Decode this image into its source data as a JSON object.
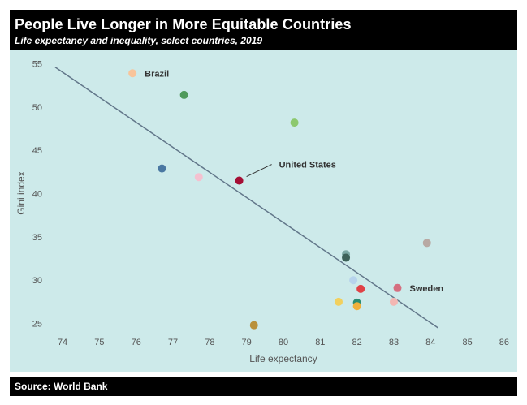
{
  "header": {
    "title": "People Live Longer in More Equitable Countries",
    "subtitle": "Life expectancy and inequality, select countries, 2019"
  },
  "footer": {
    "source": "Source: World Bank"
  },
  "colors": {
    "plot_background": "#cdeaea",
    "trend_line": "#62778a",
    "axis_text": "#555555",
    "annotation_text": "#333333"
  },
  "chart_data": {
    "type": "scatter",
    "title": "People Live Longer in More Equitable Countries",
    "subtitle": "Life expectancy and inequality, select countries, 2019",
    "xlabel": "Life expectancy",
    "ylabel": "Gini index",
    "xlim": [
      73.8,
      86.2
    ],
    "ylim": [
      24.3,
      55.8
    ],
    "x_ticks": [
      74,
      75,
      76,
      77,
      78,
      79,
      80,
      81,
      82,
      83,
      84,
      85,
      86
    ],
    "y_ticks": [
      25,
      30,
      35,
      40,
      45,
      50,
      55
    ],
    "grid": false,
    "legend": "none",
    "trend_line": {
      "x": [
        73.8,
        84.2
      ],
      "y": [
        54.6,
        24.5
      ]
    },
    "points": [
      {
        "x": 75.9,
        "y": 53.9,
        "color": "#f8c49a",
        "label": "Brazil"
      },
      {
        "x": 77.3,
        "y": 51.4,
        "color": "#4f9a5c",
        "label": ""
      },
      {
        "x": 80.3,
        "y": 48.2,
        "color": "#8cc86e",
        "label": ""
      },
      {
        "x": 76.7,
        "y": 42.9,
        "color": "#4a78a2",
        "label": ""
      },
      {
        "x": 77.7,
        "y": 41.9,
        "color": "#f4c1d0",
        "label": ""
      },
      {
        "x": 78.8,
        "y": 41.5,
        "color": "#a50f35",
        "label": "United States"
      },
      {
        "x": 83.9,
        "y": 34.3,
        "color": "#b8a9a3",
        "label": ""
      },
      {
        "x": 81.7,
        "y": 33.0,
        "color": "#7aa7a3",
        "label": ""
      },
      {
        "x": 81.7,
        "y": 32.6,
        "color": "#3c6158",
        "label": ""
      },
      {
        "x": 81.9,
        "y": 30.0,
        "color": "#b7d3ec",
        "label": ""
      },
      {
        "x": 82.1,
        "y": 29.0,
        "color": "#e04146",
        "label": ""
      },
      {
        "x": 83.1,
        "y": 29.1,
        "color": "#d56f80",
        "label": "Sweden"
      },
      {
        "x": 82.0,
        "y": 27.4,
        "color": "#2a8c73",
        "label": ""
      },
      {
        "x": 82.0,
        "y": 27.0,
        "color": "#f0b03c",
        "label": ""
      },
      {
        "x": 81.5,
        "y": 27.5,
        "color": "#f2d05e",
        "label": ""
      },
      {
        "x": 83.0,
        "y": 27.5,
        "color": "#f3b7b3",
        "label": ""
      },
      {
        "x": 79.2,
        "y": 24.8,
        "color": "#b9913b",
        "label": ""
      }
    ]
  }
}
